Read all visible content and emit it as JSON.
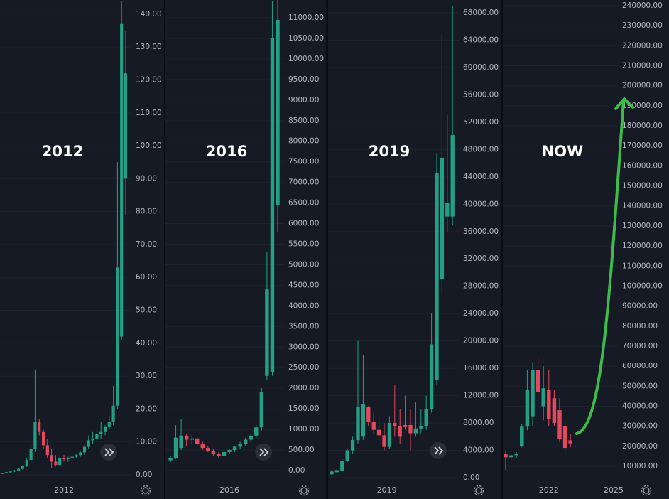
{
  "chart_data": [
    {
      "type": "candlestick",
      "title": "2012",
      "up_color": "#22a086",
      "down_color": "#e5485b",
      "xticks": [
        {
          "value": 15,
          "label": "2012"
        }
      ],
      "ylim": [
        -2.6,
        144.3
      ],
      "yticks": [
        {
          "value": 0,
          "label": "0.00"
        },
        {
          "value": 10,
          "label": "10.00"
        },
        {
          "value": 20,
          "label": "20.00"
        },
        {
          "value": 30,
          "label": "30.00"
        },
        {
          "value": 40,
          "label": "40.00"
        },
        {
          "value": 50,
          "label": "50.00"
        },
        {
          "value": 60,
          "label": "60.00"
        },
        {
          "value": 70,
          "label": "70.00"
        },
        {
          "value": 80,
          "label": "80.00"
        },
        {
          "value": 90,
          "label": "90.00"
        },
        {
          "value": 100,
          "label": "100.00"
        },
        {
          "value": 110,
          "label": "110.00"
        },
        {
          "value": 120,
          "label": "120.00"
        },
        {
          "value": 130,
          "label": "130.00"
        },
        {
          "value": 140,
          "label": "140.00"
        }
      ],
      "open": [
        0.3,
        0.5,
        0.8,
        1.0,
        1.3,
        1.8,
        2.7,
        4.5,
        8,
        16,
        13,
        9,
        6,
        4,
        3,
        5,
        4.8,
        5.2,
        5.5,
        6,
        6.8,
        8.5,
        10.5,
        11,
        12.5,
        13,
        14.5,
        16,
        21,
        42,
        90
      ],
      "high": [
        0.6,
        0.9,
        1.2,
        1.5,
        2,
        3,
        5,
        9,
        32,
        17,
        14,
        11,
        8,
        6,
        5.5,
        6,
        5.5,
        6,
        6.5,
        7,
        9,
        12,
        13,
        14,
        16,
        15,
        18,
        27,
        95,
        144,
        135
      ],
      "low": [
        0.2,
        0.4,
        0.6,
        0.8,
        1.1,
        1.5,
        2.4,
        4,
        7,
        12,
        8,
        5,
        2,
        2.5,
        2.8,
        4,
        4,
        4.5,
        5,
        5.5,
        6,
        8,
        9.5,
        10,
        11,
        12,
        14,
        15,
        20,
        41,
        79
      ],
      "close": [
        0.5,
        0.8,
        1.0,
        1.3,
        1.8,
        2.7,
        4.5,
        8,
        16,
        13,
        9,
        6,
        4,
        3,
        5,
        4.8,
        5.2,
        5.5,
        6,
        6.8,
        8.5,
        10.5,
        11,
        12.5,
        13,
        14.5,
        16,
        21,
        63,
        137,
        122
      ]
    },
    {
      "type": "candlestick",
      "title": "2016",
      "up_color": "#22a086",
      "down_color": "#e5485b",
      "xticks": [
        {
          "value": 11,
          "label": "2016"
        }
      ],
      "ylim": [
        -311,
        11432
      ],
      "yticks": [
        {
          "value": 0,
          "label": "0.00"
        },
        {
          "value": 500,
          "label": "500.00"
        },
        {
          "value": 1000,
          "label": "1000.00"
        },
        {
          "value": 1500,
          "label": "1500.00"
        },
        {
          "value": 2000,
          "label": "2000.00"
        },
        {
          "value": 2500,
          "label": "2500.00"
        },
        {
          "value": 3000,
          "label": "3000.00"
        },
        {
          "value": 3500,
          "label": "3500.00"
        },
        {
          "value": 4000,
          "label": "4000.00"
        },
        {
          "value": 4500,
          "label": "4500.00"
        },
        {
          "value": 5000,
          "label": "5000.00"
        },
        {
          "value": 5500,
          "label": "5500.00"
        },
        {
          "value": 6000,
          "label": "6000.00"
        },
        {
          "value": 6500,
          "label": "6500.00"
        },
        {
          "value": 7000,
          "label": "7000.00"
        },
        {
          "value": 7500,
          "label": "7500.00"
        },
        {
          "value": 8000,
          "label": "8000.00"
        },
        {
          "value": 8500,
          "label": "8500.00"
        },
        {
          "value": 9000,
          "label": "9000.00"
        },
        {
          "value": 9500,
          "label": "9500.00"
        },
        {
          "value": 10000,
          "label": "10000.00"
        },
        {
          "value": 10500,
          "label": "10500.00"
        },
        {
          "value": 11000,
          "label": "11000.00"
        }
      ],
      "open": [
        250,
        300,
        550,
        850,
        750,
        780,
        650,
        550,
        480,
        400,
        350,
        450,
        500,
        580,
        650,
        750,
        850,
        1050,
        2300,
        2400,
        6440
      ],
      "high": [
        350,
        1100,
        1250,
        900,
        850,
        800,
        700,
        600,
        520,
        450,
        500,
        520,
        600,
        700,
        800,
        900,
        1100,
        2000,
        5300,
        11400,
        11500
      ],
      "low": [
        200,
        280,
        500,
        600,
        650,
        600,
        500,
        450,
        350,
        300,
        320,
        400,
        450,
        520,
        600,
        700,
        800,
        950,
        2200,
        2300,
        5800
      ],
      "close": [
        300,
        800,
        850,
        750,
        780,
        650,
        550,
        480,
        400,
        350,
        450,
        500,
        580,
        650,
        750,
        850,
        1050,
        1900,
        4400,
        10500,
        10950
      ]
    },
    {
      "type": "candlestick",
      "title": "2019",
      "up_color": "#22a086",
      "down_color": "#e5485b",
      "xticks": [
        {
          "value": 10.5,
          "label": "2019"
        }
      ],
      "ylim": [
        -832,
        69871
      ],
      "yticks": [
        {
          "value": 0,
          "label": "0.00"
        },
        {
          "value": 4000,
          "label": "4000.00"
        },
        {
          "value": 8000,
          "label": "8000.00"
        },
        {
          "value": 12000,
          "label": "12000.00"
        },
        {
          "value": 16000,
          "label": "16000.00"
        },
        {
          "value": 20000,
          "label": "20000.00"
        },
        {
          "value": 24000,
          "label": "24000.00"
        },
        {
          "value": 28000,
          "label": "28000.00"
        },
        {
          "value": 32000,
          "label": "32000.00"
        },
        {
          "value": 36000,
          "label": "36000.00"
        },
        {
          "value": 40000,
          "label": "40000.00"
        },
        {
          "value": 44000,
          "label": "44000.00"
        },
        {
          "value": 48000,
          "label": "48000.00"
        },
        {
          "value": 52000,
          "label": "52000.00"
        },
        {
          "value": 56000,
          "label": "56000.00"
        },
        {
          "value": 60000,
          "label": "60000.00"
        },
        {
          "value": 64000,
          "label": "64000.00"
        },
        {
          "value": 68000,
          "label": "68000.00"
        }
      ],
      "open": [
        500,
        800,
        1000,
        2500,
        4000,
        5500,
        6000,
        10300,
        8200,
        7000,
        6200,
        4500,
        8000,
        7500,
        7700,
        7700,
        6500,
        7200,
        7500,
        10000,
        14250,
        29100,
        38200,
        38200
      ],
      "high": [
        1100,
        1300,
        2600,
        4200,
        6000,
        20000,
        18000,
        10500,
        9500,
        9000,
        8000,
        9000,
        13500,
        10000,
        12000,
        10000,
        11000,
        10000,
        12000,
        24000,
        47500,
        64900,
        53000,
        69000
      ],
      "low": [
        400,
        700,
        900,
        2300,
        3500,
        5000,
        5500,
        7500,
        6500,
        5500,
        4000,
        4200,
        6000,
        5000,
        7000,
        4000,
        6000,
        6500,
        7000,
        9500,
        13500,
        27000,
        36000,
        37000
      ],
      "close": [
        900,
        1100,
        2400,
        4000,
        5500,
        10300,
        10800,
        8200,
        7000,
        6200,
        4500,
        8000,
        7500,
        6000,
        7400,
        6500,
        7200,
        7500,
        10000,
        19500,
        44500,
        46800,
        40200,
        50100
      ]
    },
    {
      "type": "candlestick",
      "title": "NOW",
      "up_color": "#22a086",
      "down_color": "#e5485b",
      "xticks": [
        {
          "value": 8,
          "label": "2022"
        },
        {
          "value": 20,
          "label": "2025"
        }
      ],
      "ylim": [
        1480,
        242840
      ],
      "yticks": [
        {
          "value": 10000,
          "label": "10000.00"
        },
        {
          "value": 20000,
          "label": "20000.00"
        },
        {
          "value": 30000,
          "label": "30000.00"
        },
        {
          "value": 40000,
          "label": "40000.00"
        },
        {
          "value": 50000,
          "label": "50000.00"
        },
        {
          "value": 60000,
          "label": "60000.00"
        },
        {
          "value": 70000,
          "label": "70000.00"
        },
        {
          "value": 80000,
          "label": "80000.00"
        },
        {
          "value": 90000,
          "label": "90000.00"
        },
        {
          "value": 100000,
          "label": "100000.00"
        },
        {
          "value": 110000,
          "label": "110000.00"
        },
        {
          "value": 120000,
          "label": "120000.00"
        },
        {
          "value": 130000,
          "label": "130000.00"
        },
        {
          "value": 140000,
          "label": "140000.00"
        },
        {
          "value": 150000,
          "label": "150000.00"
        },
        {
          "value": 160000,
          "label": "160000.00"
        },
        {
          "value": 170000,
          "label": "170000.00"
        },
        {
          "value": 180000,
          "label": "180000.00"
        },
        {
          "value": 190000,
          "label": "190000.00"
        },
        {
          "value": 200000,
          "label": "200000.00"
        },
        {
          "value": 210000,
          "label": "210000.00"
        },
        {
          "value": 220000,
          "label": "220000.00"
        },
        {
          "value": 230000,
          "label": "230000.00"
        },
        {
          "value": 240000,
          "label": "240000.00"
        }
      ],
      "open": [
        16000,
        14500,
        15500,
        20000,
        29800,
        35000,
        58000,
        40000,
        48000,
        44000,
        38000,
        29900,
        23000
      ],
      "high": [
        18000,
        16000,
        17000,
        31000,
        58000,
        62000,
        64000,
        60000,
        58000,
        48000,
        44000,
        32000,
        26000
      ],
      "low": [
        8000,
        13000,
        14000,
        19500,
        28000,
        30000,
        42000,
        33000,
        30000,
        30000,
        22000,
        15700,
        19500
      ],
      "close": [
        14500,
        15500,
        16000,
        29800,
        48000,
        58000,
        47000,
        49000,
        33500,
        31600,
        23500,
        19200,
        21500
      ]
    }
  ]
}
